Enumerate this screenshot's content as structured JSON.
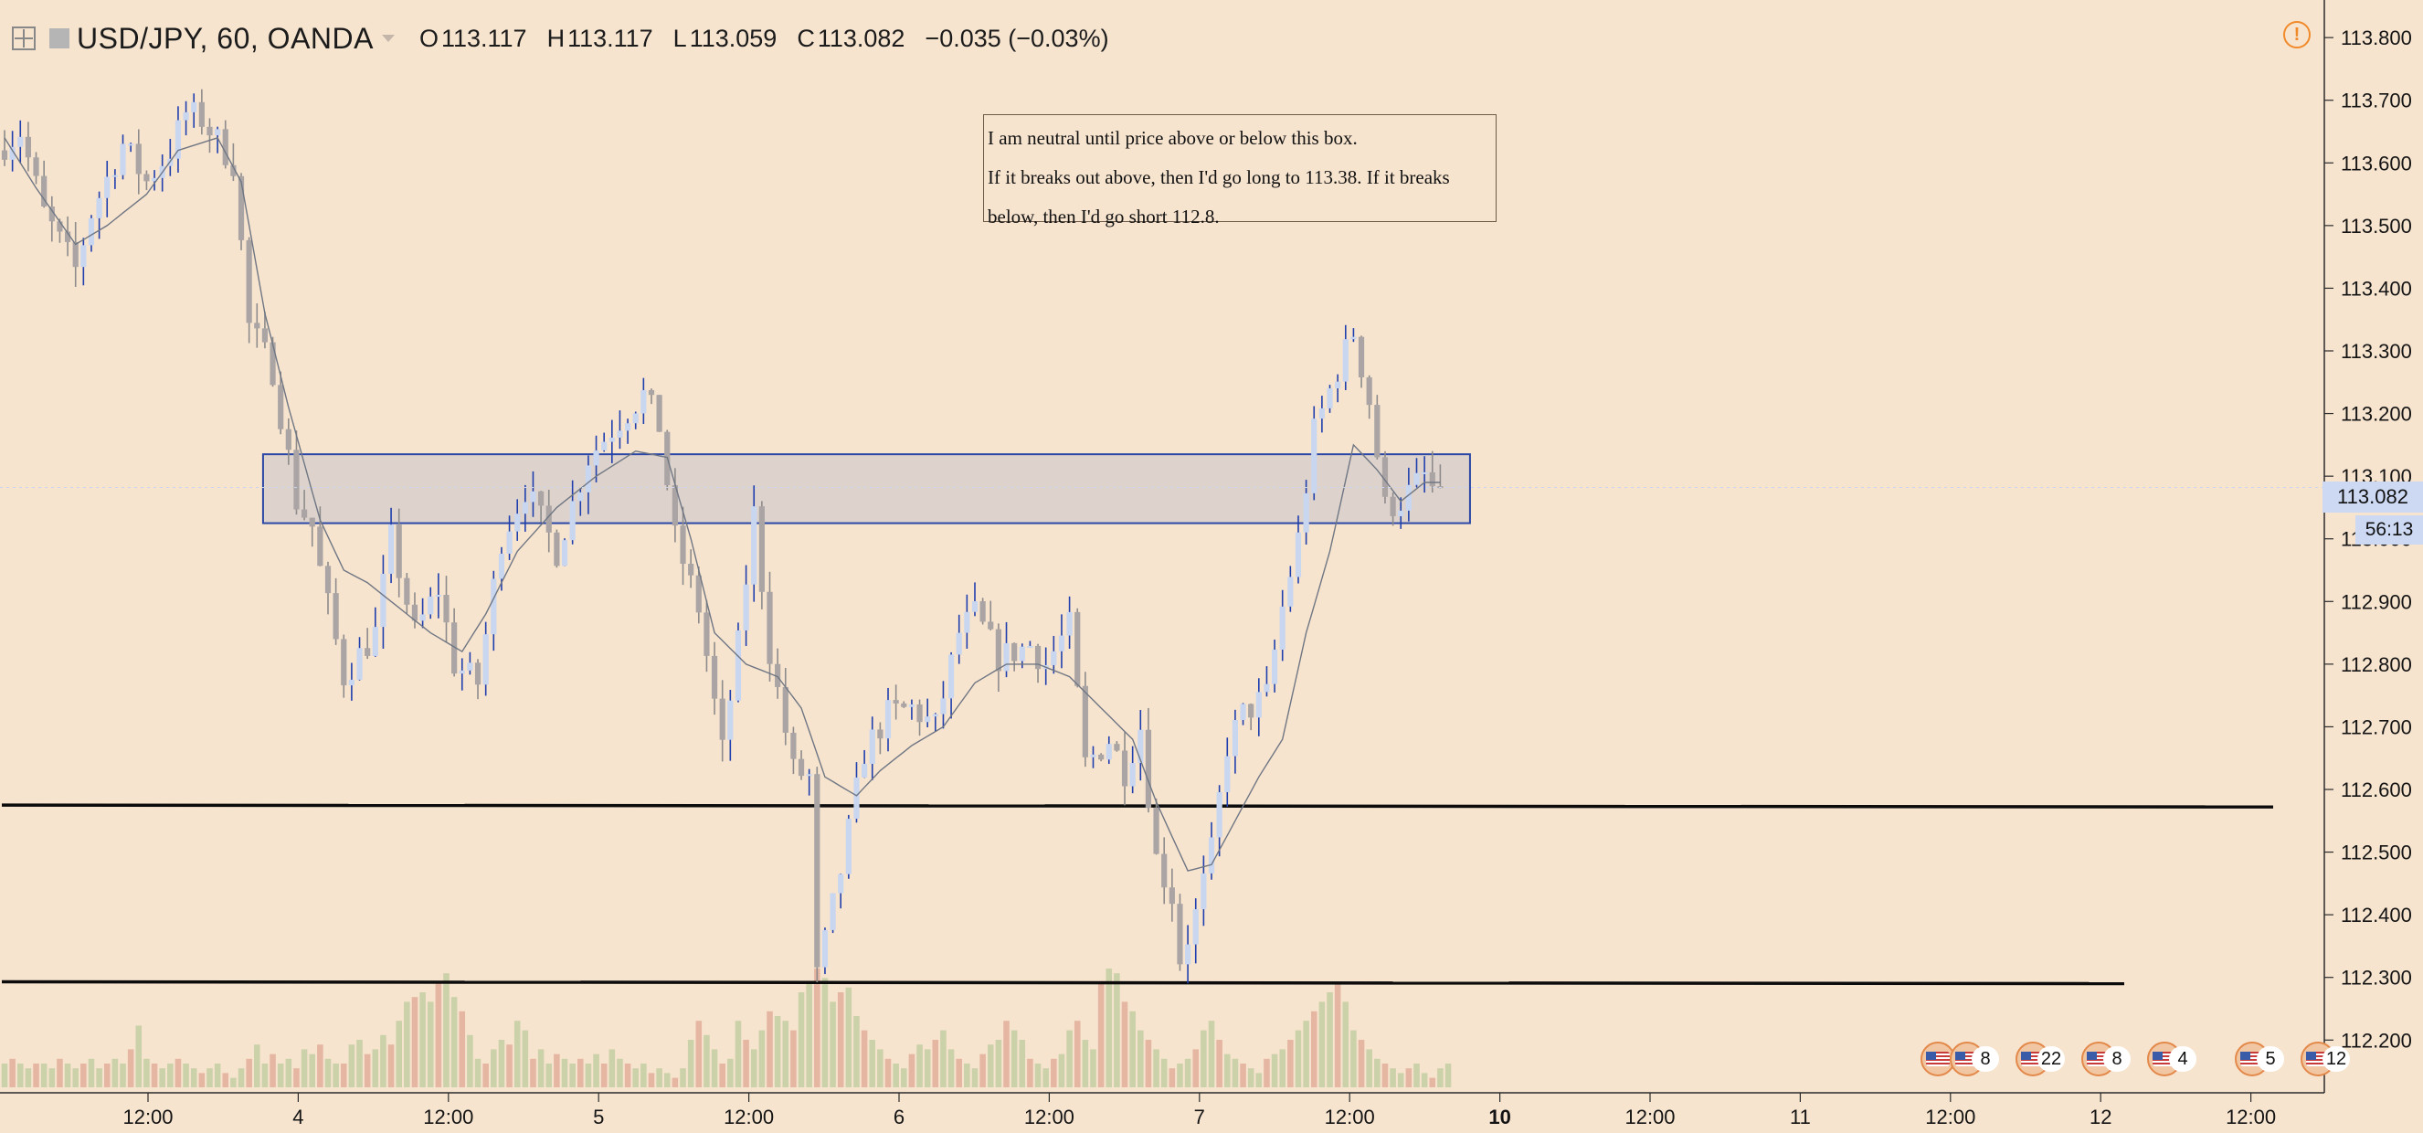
{
  "header": {
    "symbol": "USD/JPY, 60, OANDA",
    "open_key": "O",
    "open": "113.117",
    "high_key": "H",
    "high": "113.117",
    "low_key": "L",
    "low": "113.059",
    "close_key": "C",
    "close": "113.082",
    "change": "−0.035 (−0.03%)"
  },
  "annotation": {
    "line1": "I am neutral until price above or below this box.",
    "line2": "If it breaks out above, then I'd go long to 113.38. If it breaks",
    "line3": "below, then I'd go short 112.8."
  },
  "price_tag": "113.082",
  "countdown": "56:13",
  "event_counts": [
    "8",
    "22",
    "8",
    "4",
    "5",
    "12"
  ],
  "colors": {
    "background": "#f7e4cf",
    "up_candle": "#c8d6f0",
    "down_candle": "#aaa5a4",
    "wick": "#1f3fae",
    "vol_up": "#cbd1a8",
    "vol_down": "#e5b6a2",
    "box_fill": "#d8d0cb",
    "box_border": "#2b47a6",
    "ma_line": "#6f7683",
    "alert": "#f08a2a"
  },
  "chart_data": {
    "type": "candlestick",
    "title": "USD/JPY, 60, OANDA",
    "ylim": [
      112.145,
      113.86
    ],
    "y_ticks": [
      "113.800",
      "113.700",
      "113.600",
      "113.500",
      "113.400",
      "113.300",
      "113.200",
      "113.100",
      "113.000",
      "112.900",
      "112.800",
      "112.700",
      "112.600",
      "112.500",
      "112.400",
      "112.300",
      "112.200"
    ],
    "x_ticks": [
      "12:00",
      "4",
      "12:00",
      "5",
      "12:00",
      "6",
      "12:00",
      "7",
      "12:00",
      "10",
      "12:00",
      "11",
      "12:00",
      "12",
      "12:00"
    ],
    "bold_x_ticks": [
      "10"
    ],
    "candle_count": 236,
    "anchors": [
      [
        0,
        113.62
      ],
      [
        3,
        113.65
      ],
      [
        6,
        113.52
      ],
      [
        10,
        113.43
      ],
      [
        12,
        113.52
      ],
      [
        16,
        113.63
      ],
      [
        19,
        113.57
      ],
      [
        22,
        113.62
      ],
      [
        24,
        113.68
      ],
      [
        26,
        113.67
      ],
      [
        30,
        113.6
      ],
      [
        32,
        113.34
      ],
      [
        35,
        113.27
      ],
      [
        38,
        113.06
      ],
      [
        40,
        113.02
      ],
      [
        41,
        112.95
      ],
      [
        44,
        112.78
      ],
      [
        48,
        112.85
      ],
      [
        50,
        113.0
      ],
      [
        53,
        112.85
      ],
      [
        56,
        112.92
      ],
      [
        58,
        112.8
      ],
      [
        61,
        112.77
      ],
      [
        64,
        113.0
      ],
      [
        67,
        113.08
      ],
      [
        71,
        112.98
      ],
      [
        75,
        113.13
      ],
      [
        79,
        113.19
      ],
      [
        82,
        113.23
      ],
      [
        84,
        113.18
      ],
      [
        86,
        113.0
      ],
      [
        89,
        112.89
      ],
      [
        92,
        112.66
      ],
      [
        94,
        112.83
      ],
      [
        96,
        113.04
      ],
      [
        98,
        112.82
      ],
      [
        101,
        112.63
      ],
      [
        103,
        112.62
      ],
      [
        104,
        112.3
      ],
      [
        107,
        112.47
      ],
      [
        110,
        112.66
      ],
      [
        113,
        112.72
      ],
      [
        116,
        112.73
      ],
      [
        119,
        112.7
      ],
      [
        122,
        112.85
      ],
      [
        124,
        112.88
      ],
      [
        127,
        112.81
      ],
      [
        131,
        112.83
      ],
      [
        133,
        112.8
      ],
      [
        136,
        112.86
      ],
      [
        138,
        112.64
      ],
      [
        141,
        112.68
      ],
      [
        143,
        112.63
      ],
      [
        145,
        112.7
      ],
      [
        147,
        112.49
      ],
      [
        149,
        112.43
      ],
      [
        150,
        112.33
      ],
      [
        152,
        112.4
      ],
      [
        154,
        112.5
      ],
      [
        156,
        112.67
      ],
      [
        158,
        112.72
      ],
      [
        161,
        112.75
      ],
      [
        163,
        112.89
      ],
      [
        165,
        113.0
      ],
      [
        167,
        113.17
      ],
      [
        170,
        113.27
      ],
      [
        172,
        113.33
      ],
      [
        174,
        113.22
      ],
      [
        176,
        113.05
      ],
      [
        178,
        113.06
      ],
      [
        181,
        113.1
      ],
      [
        182,
        113.08
      ],
      [
        236,
        113.08
      ]
    ],
    "ma_anchors": [
      [
        0,
        113.64
      ],
      [
        4,
        113.56
      ],
      [
        9,
        113.47
      ],
      [
        13,
        113.5
      ],
      [
        18,
        113.55
      ],
      [
        22,
        113.62
      ],
      [
        27,
        113.64
      ],
      [
        30,
        113.57
      ],
      [
        33,
        113.36
      ],
      [
        36,
        113.21
      ],
      [
        40,
        113.03
      ],
      [
        43,
        112.95
      ],
      [
        46,
        112.93
      ],
      [
        50,
        112.89
      ],
      [
        54,
        112.85
      ],
      [
        58,
        112.82
      ],
      [
        61,
        112.88
      ],
      [
        65,
        112.98
      ],
      [
        70,
        113.05
      ],
      [
        75,
        113.1
      ],
      [
        80,
        113.14
      ],
      [
        84,
        113.13
      ],
      [
        87,
        113.0
      ],
      [
        90,
        112.85
      ],
      [
        94,
        112.8
      ],
      [
        98,
        112.78
      ],
      [
        101,
        112.73
      ],
      [
        104,
        112.62
      ],
      [
        108,
        112.59
      ],
      [
        111,
        112.63
      ],
      [
        115,
        112.67
      ],
      [
        119,
        112.7
      ],
      [
        123,
        112.77
      ],
      [
        127,
        112.8
      ],
      [
        131,
        112.8
      ],
      [
        135,
        112.78
      ],
      [
        139,
        112.73
      ],
      [
        143,
        112.68
      ],
      [
        146,
        112.58
      ],
      [
        150,
        112.47
      ],
      [
        153,
        112.48
      ],
      [
        156,
        112.55
      ],
      [
        159,
        112.62
      ],
      [
        162,
        112.68
      ],
      [
        165,
        112.85
      ],
      [
        168,
        112.98
      ],
      [
        171,
        113.15
      ],
      [
        174,
        113.11
      ],
      [
        177,
        113.06
      ],
      [
        180,
        113.09
      ],
      [
        182,
        113.09
      ]
    ],
    "support_lines": [
      112.575,
      112.293
    ],
    "box": {
      "start_candle": 33,
      "end_candle": 186,
      "top": 113.135,
      "bottom": 113.025
    },
    "volume": [
      5,
      6,
      5,
      4,
      5,
      5,
      4,
      6,
      5,
      4,
      5,
      6,
      4,
      5,
      6,
      5,
      8,
      13,
      6,
      5,
      4,
      5,
      6,
      5,
      4,
      3,
      4,
      5,
      3,
      2,
      4,
      6,
      9,
      5,
      7,
      5,
      6,
      4,
      8,
      7,
      9,
      6,
      5,
      5,
      9,
      10,
      7,
      8,
      11,
      9,
      14,
      18,
      19,
      20,
      18,
      22,
      24,
      19,
      16,
      11,
      6,
      5,
      8,
      10,
      9,
      14,
      12,
      6,
      8,
      5,
      7,
      6,
      5,
      6,
      5,
      7,
      5,
      8,
      6,
      5,
      4,
      5,
      3,
      4,
      3,
      2,
      4,
      10,
      14,
      11,
      8,
      5,
      6,
      14,
      10,
      8,
      12,
      16,
      15,
      14,
      12,
      20,
      22,
      25,
      23,
      18,
      20,
      21,
      15,
      12,
      10,
      8,
      6,
      5,
      4,
      7,
      9,
      8,
      10,
      12,
      8,
      6,
      5,
      4,
      7,
      9,
      10,
      14,
      12,
      10,
      6,
      5,
      4,
      6,
      7,
      12,
      14,
      10,
      8,
      22,
      25,
      24,
      18,
      16,
      12,
      10,
      8,
      6,
      4,
      5,
      6,
      8,
      12,
      14,
      10,
      7,
      6,
      5,
      4,
      3,
      6,
      7,
      8,
      10,
      12,
      14,
      16,
      18,
      20,
      22,
      18,
      12,
      10,
      8,
      6,
      5,
      4,
      3,
      4,
      5,
      3,
      2,
      4,
      5,
      3,
      2,
      4,
      5,
      4,
      3,
      3,
      4,
      3,
      4,
      3,
      4,
      3,
      4,
      3,
      4,
      3,
      4,
      3,
      4,
      3,
      4,
      3,
      4,
      3,
      4,
      3,
      4,
      3,
      4,
      3,
      4,
      3,
      4,
      3,
      4,
      3,
      4,
      3,
      4,
      3,
      4,
      3,
      4,
      3,
      4,
      3,
      4,
      3,
      4,
      3,
      4,
      3,
      4,
      3,
      4,
      3,
      4,
      3,
      4,
      3,
      4
    ]
  }
}
